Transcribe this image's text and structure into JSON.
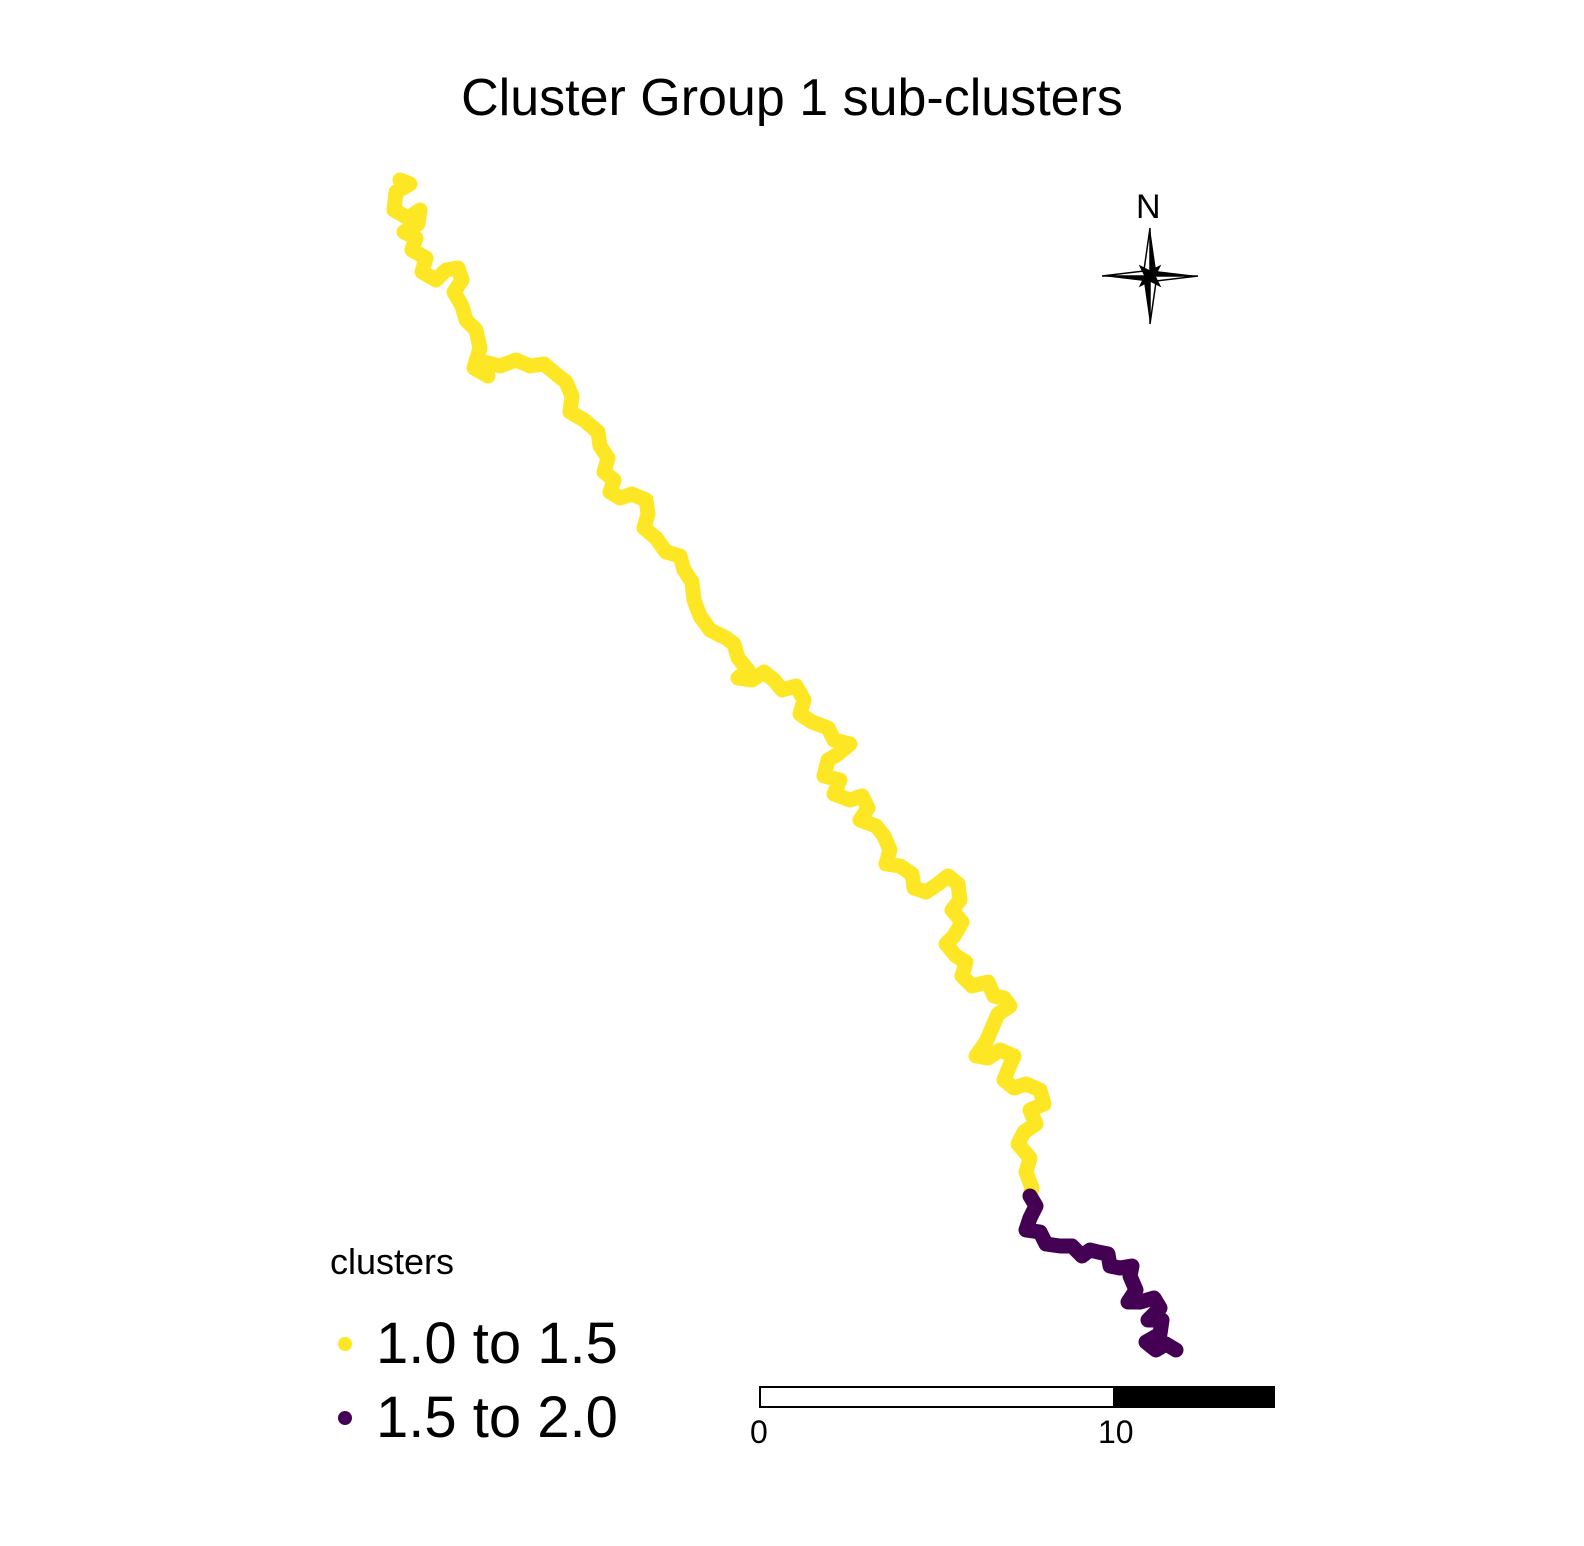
{
  "title": "Cluster Group 1 sub-clusters",
  "legend": {
    "title": "clusters",
    "items": [
      {
        "label": "1.0 to 1.5",
        "color": "#fde725"
      },
      {
        "label": "1.5 to 2.0",
        "color": "#440154"
      }
    ]
  },
  "north_arrow": {
    "label": "N",
    "icon": "compass-star-icon"
  },
  "scale_bar": {
    "ticks": [
      "0",
      "10"
    ]
  },
  "colors": {
    "low": "#fde725",
    "high": "#440154",
    "background": "#ffffff"
  }
}
